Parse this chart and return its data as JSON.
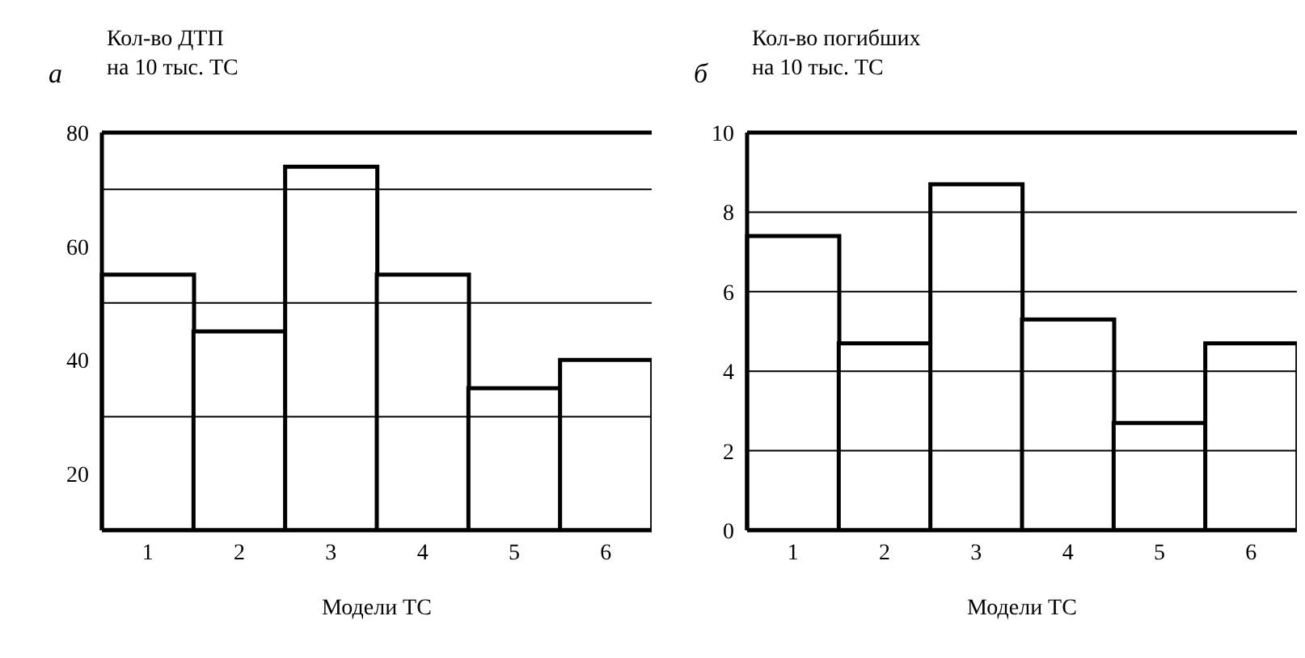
{
  "chart_data": [
    {
      "type": "bar",
      "annotations": [
        "а"
      ],
      "ylabel": "Кол-во ДТП\nна 10 тыс. ТС",
      "xlabel": "Модели ТС",
      "categories": [
        "1",
        "2",
        "3",
        "4",
        "5",
        "6"
      ],
      "values": [
        55,
        45,
        74,
        55,
        35,
        40
      ],
      "color": "#ffffff",
      "ylim": [
        10,
        80
      ],
      "yticks": [
        20,
        40,
        60,
        80
      ],
      "grid": false,
      "ref_lines": [
        {
          "axis": "y",
          "value": 30
        },
        {
          "axis": "y",
          "value": 50
        },
        {
          "axis": "y",
          "value": 70
        }
      ]
    },
    {
      "type": "bar",
      "annotations": [
        "б"
      ],
      "ylabel": "Кол-во погибших\nна 10 тыс. ТС",
      "xlabel": "Модели ТС",
      "categories": [
        "1",
        "2",
        "3",
        "4",
        "5",
        "6"
      ],
      "values": [
        7.4,
        4.7,
        8.7,
        5.3,
        2.7,
        4.7
      ],
      "color": "#ffffff",
      "ylim": [
        0,
        10
      ],
      "yticks": [
        0,
        2,
        4,
        6,
        8,
        10
      ],
      "grid": "y"
    }
  ]
}
